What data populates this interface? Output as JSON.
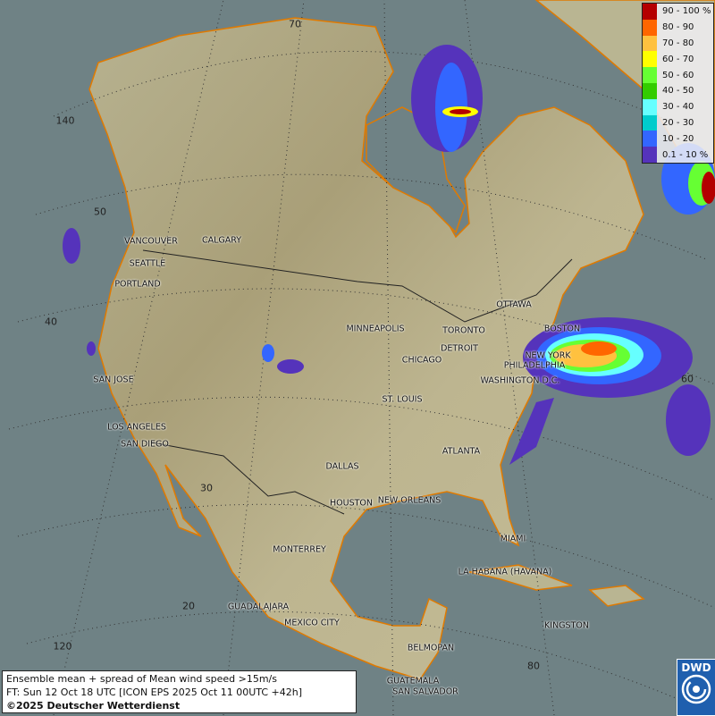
{
  "legend": {
    "items": [
      {
        "label": "90 - 100 %",
        "color": "#b40000"
      },
      {
        "label": "80 - 90",
        "color": "#ff6600"
      },
      {
        "label": "70 - 80",
        "color": "#ffc13f"
      },
      {
        "label": "60 - 70",
        "color": "#ffff00"
      },
      {
        "label": "50 - 60",
        "color": "#66ff33"
      },
      {
        "label": "40 - 50",
        "color": "#33cc00"
      },
      {
        "label": "30 - 40",
        "color": "#66ffff"
      },
      {
        "label": "20 - 30",
        "color": "#00cccc"
      },
      {
        "label": "10 - 20",
        "color": "#3366ff"
      },
      {
        "label": "0.1 - 10 %",
        "color": "#5533bb"
      }
    ]
  },
  "info": {
    "line1": "Ensemble mean + spread of Mean wind speed >15m/s",
    "line2": "FT: Sun 12 Oct 18 UTC [ICON EPS 2025 Oct 11 00UTC +42h]",
    "line3": "©2025 Deutscher Wetterdienst"
  },
  "logo": {
    "text": "DWD"
  },
  "grid_labels": [
    "70",
    "140",
    "50",
    "40",
    "30",
    "20",
    "120",
    "60",
    "80"
  ],
  "cities": [
    "VANCOUVER",
    "CALGARY",
    "SEATTLE",
    "PORTLAND",
    "MINNEAPOLIS",
    "TORONTO",
    "OTTAWA",
    "BOSTON",
    "NEW YORK",
    "PHILADELPHIA",
    "WASHINGTON D.C.",
    "DETROIT",
    "CHICAGO",
    "ST. LOUIS",
    "SAN JOSE",
    "LOS ANGELES",
    "SAN DIEGO",
    "DALLAS",
    "ATLANTA",
    "HOUSTON",
    "NEW ORLEANS",
    "MIAMI",
    "MONTERREY",
    "LA HABANA (HAVANA)",
    "GUADALAJARA",
    "MEXICO CITY",
    "KINGSTON",
    "BELMOPAN",
    "GUATEMALA",
    "SAN SALVADOR"
  ]
}
